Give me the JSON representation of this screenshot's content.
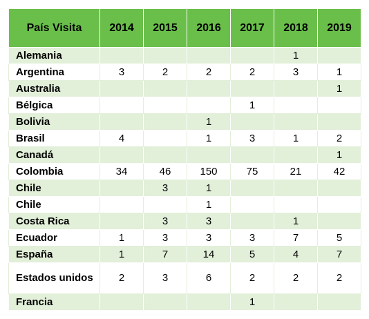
{
  "table": {
    "headers": [
      "País Visita",
      "2014",
      "2015",
      "2016",
      "2017",
      "2018",
      "2019"
    ],
    "rows": [
      {
        "country": "Alemania",
        "values": [
          "",
          "",
          "",
          "",
          "1",
          ""
        ]
      },
      {
        "country": "Argentina",
        "values": [
          "3",
          "2",
          "2",
          "2",
          "3",
          "1"
        ]
      },
      {
        "country": "Australia",
        "values": [
          "",
          "",
          "",
          "",
          "",
          "1"
        ]
      },
      {
        "country": "Bélgica",
        "values": [
          "",
          "",
          "",
          "1",
          "",
          ""
        ]
      },
      {
        "country": "Bolivia",
        "values": [
          "",
          "",
          "1",
          "",
          "",
          ""
        ]
      },
      {
        "country": "Brasil",
        "values": [
          "4",
          "",
          "1",
          "3",
          "1",
          "2"
        ]
      },
      {
        "country": "Canadá",
        "values": [
          "",
          "",
          "",
          "",
          "",
          "1"
        ]
      },
      {
        "country": "Colombia",
        "values": [
          "34",
          "46",
          "150",
          "75",
          "21",
          "42"
        ]
      },
      {
        "country": "Chile",
        "values": [
          "",
          "3",
          "1",
          "",
          "",
          ""
        ]
      },
      {
        "country": "Chile",
        "values": [
          "",
          "",
          "1",
          "",
          "",
          ""
        ]
      },
      {
        "country": "Costa Rica",
        "values": [
          "",
          "3",
          "3",
          "",
          "1",
          ""
        ]
      },
      {
        "country": "Ecuador",
        "values": [
          "1",
          "3",
          "3",
          "3",
          "7",
          "5"
        ]
      },
      {
        "country": "España",
        "values": [
          "1",
          "7",
          "14",
          "5",
          "4",
          "7"
        ]
      },
      {
        "country": "Estados unidos",
        "values": [
          "2",
          "3",
          "6",
          "2",
          "2",
          "2"
        ]
      },
      {
        "country": "Francia",
        "values": [
          "",
          "",
          "",
          "1",
          "",
          ""
        ]
      }
    ]
  }
}
